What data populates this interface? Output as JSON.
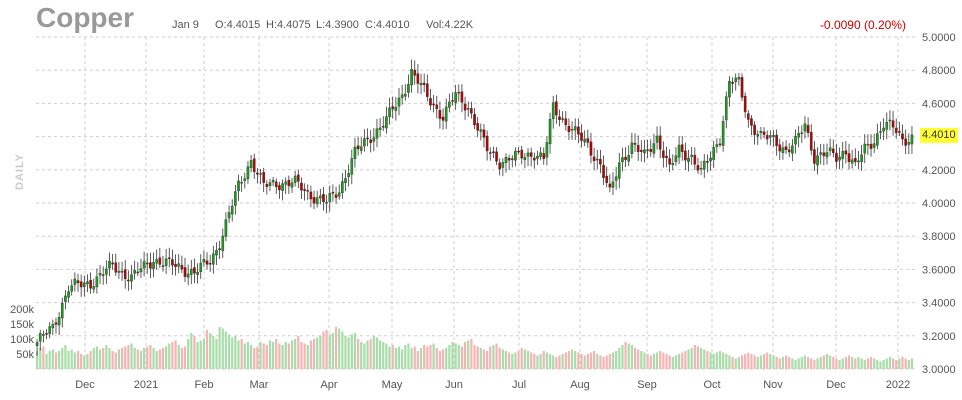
{
  "header": {
    "title": "Copper",
    "date": "Jan 9",
    "open": "O:4.4015",
    "high": "H:4.4075",
    "low": "L:4.3900",
    "close": "C:4.4010",
    "volume": "Vol:4.22K",
    "change": "-0.0090 (0.20%)",
    "period_label": "DAILY"
  },
  "colors": {
    "up": "#1a9e1a",
    "down": "#bb0000",
    "volume_up": "#a8dca8",
    "volume_down": "#f4b4b4",
    "grid": "#cfcfcf",
    "last_price_bg": "#ffff33",
    "change_negative": "#cc0000"
  },
  "chart_data": {
    "type": "candlestick",
    "y_axis": {
      "range": [
        3.0,
        5.0
      ],
      "ticks": [
        "5.0000",
        "4.8000",
        "4.6000",
        "4.4000",
        "4.2000",
        "4.0000",
        "3.8000",
        "3.6000",
        "3.4000",
        "3.2000",
        "3.0000"
      ],
      "position": "right"
    },
    "volume_axis": {
      "ticks": [
        "200k",
        "150k",
        "100k",
        "50k"
      ],
      "position": "left"
    },
    "x_axis": {
      "labels": [
        "Dec",
        "2021",
        "Feb",
        "Mar",
        "Apr",
        "May",
        "Jun",
        "Jul",
        "Aug",
        "Sep",
        "Oct",
        "Nov",
        "Dec",
        "2022"
      ]
    },
    "last_price": "4.4010",
    "grid": true,
    "price_path": [
      [
        0,
        3.16
      ],
      [
        5,
        3.25
      ],
      [
        10,
        3.49
      ],
      [
        17,
        3.52
      ],
      [
        24,
        3.62
      ],
      [
        30,
        3.55
      ],
      [
        37,
        3.66
      ],
      [
        44,
        3.62
      ],
      [
        50,
        3.58
      ],
      [
        55,
        3.65
      ],
      [
        58,
        3.76
      ],
      [
        64,
        4.1
      ],
      [
        68,
        4.26
      ],
      [
        72,
        4.1
      ],
      [
        76,
        4.12
      ],
      [
        82,
        4.12
      ],
      [
        87,
        4.05
      ],
      [
        92,
        4.0
      ],
      [
        96,
        4.08
      ],
      [
        101,
        4.3
      ],
      [
        106,
        4.4
      ],
      [
        111,
        4.5
      ],
      [
        116,
        4.65
      ],
      [
        119,
        4.79
      ],
      [
        124,
        4.64
      ],
      [
        129,
        4.52
      ],
      [
        133,
        4.65
      ],
      [
        137,
        4.58
      ],
      [
        140,
        4.45
      ],
      [
        143,
        4.32
      ],
      [
        147,
        4.25
      ],
      [
        151,
        4.27
      ],
      [
        155,
        4.29
      ],
      [
        158,
        4.3
      ],
      [
        161,
        4.26
      ],
      [
        164,
        4.58
      ],
      [
        168,
        4.48
      ],
      [
        172,
        4.4
      ],
      [
        175,
        4.35
      ],
      [
        179,
        4.23
      ],
      [
        182,
        4.05
      ],
      [
        185,
        4.24
      ],
      [
        189,
        4.35
      ],
      [
        193,
        4.28
      ],
      [
        197,
        4.4
      ],
      [
        201,
        4.2
      ],
      [
        204,
        4.32
      ],
      [
        208,
        4.28
      ],
      [
        211,
        4.18
      ],
      [
        214,
        4.28
      ],
      [
        217,
        4.4
      ],
      [
        220,
        4.73
      ],
      [
        223,
        4.72
      ],
      [
        226,
        4.5
      ],
      [
        230,
        4.4
      ],
      [
        234,
        4.38
      ],
      [
        238,
        4.32
      ],
      [
        241,
        4.36
      ],
      [
        244,
        4.47
      ],
      [
        247,
        4.28
      ],
      [
        251,
        4.3
      ],
      [
        254,
        4.27
      ],
      [
        257,
        4.32
      ],
      [
        260,
        4.22
      ],
      [
        263,
        4.32
      ],
      [
        266,
        4.38
      ],
      [
        269,
        4.48
      ],
      [
        272,
        4.45
      ],
      [
        275,
        4.38
      ],
      [
        278,
        4.4
      ]
    ],
    "volume_k": [
      60,
      70,
      75,
      50,
      60,
      65,
      55,
      60,
      70,
      80,
      60,
      65,
      55,
      60,
      50,
      45,
      50,
      60,
      70,
      75,
      65,
      70,
      80,
      70,
      60,
      55,
      65,
      70,
      75,
      80,
      85,
      70,
      65,
      60,
      70,
      75,
      80,
      70,
      60,
      65,
      70,
      75,
      85,
      90,
      95,
      80,
      70,
      75,
      100,
      120,
      110,
      90,
      95,
      100,
      130,
      120,
      110,
      100,
      140,
      135,
      125,
      115,
      105,
      110,
      95,
      100,
      85,
      90,
      80,
      70,
      75,
      90,
      85,
      80,
      95,
      90,
      100,
      85,
      80,
      90,
      85,
      95,
      100,
      110,
      90,
      85,
      80,
      95,
      100,
      105,
      110,
      125,
      130,
      115,
      120,
      140,
      135,
      125,
      110,
      105,
      115,
      120,
      100,
      90,
      85,
      95,
      100,
      110,
      105,
      95,
      90,
      85,
      75,
      80,
      70,
      75,
      65,
      80,
      85,
      70,
      75,
      60,
      70,
      80,
      75,
      80,
      85,
      70,
      60,
      65,
      70,
      80,
      90,
      85,
      80,
      75,
      90,
      95,
      100,
      80,
      75,
      70,
      65,
      60,
      75,
      80,
      85,
      70,
      65,
      60,
      55,
      50,
      55,
      60,
      70,
      65,
      60,
      55,
      50,
      45,
      50,
      60,
      55,
      50,
      45,
      40,
      45,
      50,
      55,
      60,
      65,
      60,
      55,
      50,
      45,
      50,
      55,
      60,
      50,
      45,
      40,
      45,
      50,
      55,
      60,
      70,
      80,
      90,
      85,
      80,
      70,
      65,
      60,
      55,
      50,
      45,
      50,
      55,
      60,
      55,
      50,
      45,
      40,
      45,
      50,
      55,
      60,
      65,
      70,
      80,
      75,
      70,
      65,
      60,
      55,
      50,
      55,
      60,
      55,
      50,
      45,
      40,
      35,
      40,
      45,
      50,
      55,
      50,
      45,
      40,
      45,
      50,
      55,
      50,
      45,
      40,
      35,
      40,
      45,
      40,
      35,
      30,
      35,
      40,
      45,
      40,
      35,
      30,
      35,
      40,
      45,
      50,
      45,
      40,
      35,
      30,
      35,
      40,
      45,
      40,
      35,
      40,
      35,
      30,
      35,
      40,
      35,
      30,
      25,
      30,
      35,
      40,
      35,
      30,
      35,
      40,
      35,
      30,
      35,
      40
    ]
  }
}
